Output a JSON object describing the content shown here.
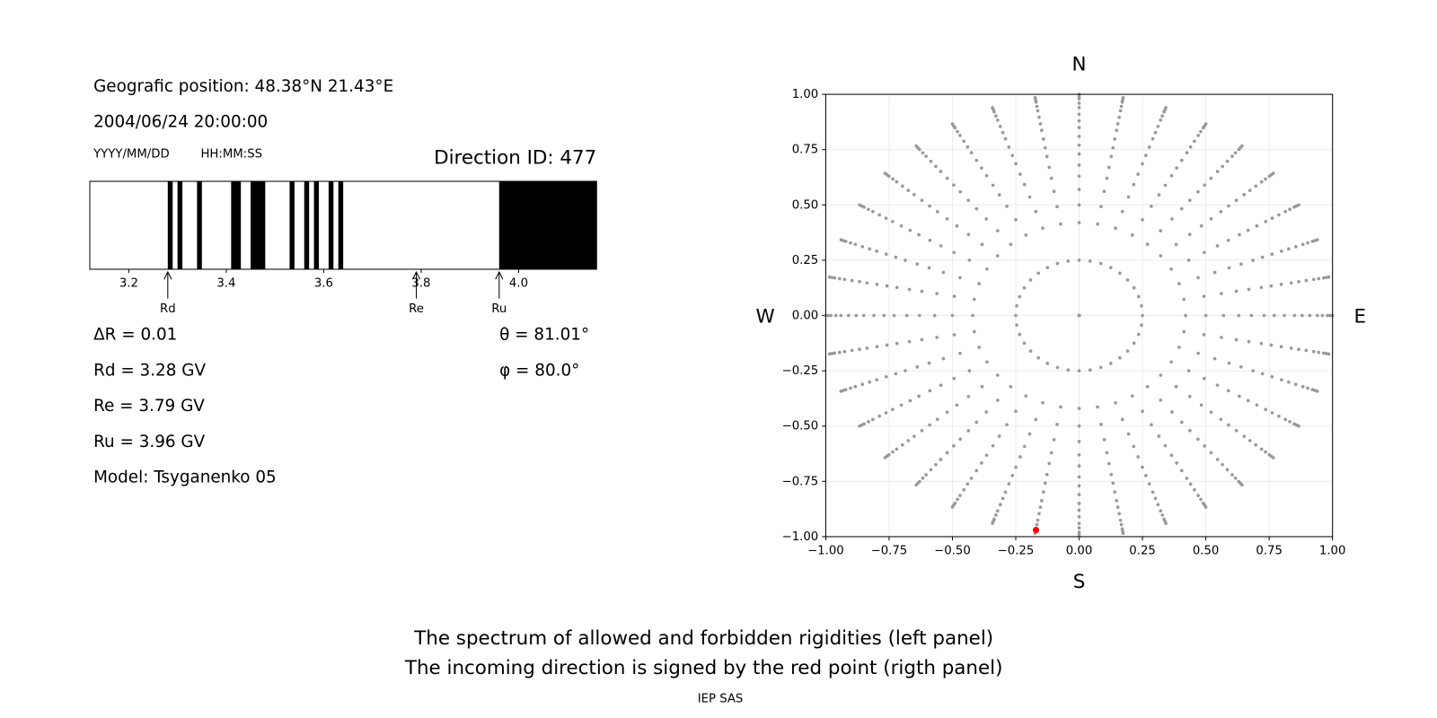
{
  "header": {
    "position": "Geografic position: 48.38°N 21.43°E",
    "datetime": "2004/06/24 20:00:00",
    "date_format": "YYYY/MM/DD",
    "time_format": "HH:MM:SS",
    "direction_id": "Direction ID: 477"
  },
  "parameters": [
    "ΔR = 0.01",
    "Rd = 3.28 GV",
    "Re = 3.79 GV",
    "Ru = 3.96 GV",
    "Model: Tsyganenko 05"
  ],
  "angles": [
    "θ = 81.01°",
    "φ = 80.0°"
  ],
  "caption": [
    "The spectrum of allowed and forbidden rigidities (left panel)",
    "The incoming direction is signed by the red point (rigth panel)"
  ],
  "footer": "IEP SAS",
  "chart_data": [
    {
      "type": "spectrum",
      "color": "#000000",
      "xlim": [
        3.12,
        4.16
      ],
      "xticks": [
        3.2,
        3.4,
        3.6,
        3.8,
        {
          "value": 4,
          "label": "4.0"
        }
      ],
      "forbidden": [
        [
          3.28,
          3.29
        ],
        [
          3.3,
          3.31
        ],
        [
          3.34,
          3.35
        ],
        [
          3.41,
          3.43
        ],
        [
          3.45,
          3.48
        ],
        [
          3.53,
          3.54
        ],
        [
          3.56,
          3.57
        ],
        [
          3.58,
          3.59
        ],
        [
          3.61,
          3.62
        ],
        [
          3.63,
          3.64
        ],
        [
          3.96,
          4.16
        ]
      ],
      "markers": [
        {
          "label": "Rd",
          "value": 3.28
        },
        {
          "label": "Re",
          "value": 3.79
        },
        {
          "label": "Ru",
          "value": 3.96
        }
      ]
    },
    {
      "type": "scatter",
      "point_color": "#999999",
      "grid": true,
      "xlim": [
        -1,
        1
      ],
      "ylim": [
        -1,
        1
      ],
      "xticks": [
        {
          "value": -1,
          "label": "−1.00"
        },
        {
          "value": -0.75,
          "label": "−0.75"
        },
        {
          "value": -0.5,
          "label": "−0.50"
        },
        {
          "value": -0.25,
          "label": "−0.25"
        },
        {
          "value": 0,
          "label": "0.00"
        },
        {
          "value": 0.25,
          "label": "0.25"
        },
        {
          "value": 0.5,
          "label": "0.50"
        },
        {
          "value": 0.75,
          "label": "0.75"
        },
        {
          "value": 1,
          "label": "1.00"
        }
      ],
      "yticks": [
        {
          "value": -1,
          "label": "−1.00"
        },
        {
          "value": -0.75,
          "label": "−0.75"
        },
        {
          "value": -0.5,
          "label": "−0.50"
        },
        {
          "value": -0.25,
          "label": "−0.25"
        },
        {
          "value": 0,
          "label": "0.00"
        },
        {
          "value": 0.25,
          "label": "0.25"
        },
        {
          "value": 0.5,
          "label": "0.50"
        },
        {
          "value": 0.75,
          "label": "0.75"
        },
        {
          "value": 1,
          "label": "1.00"
        }
      ],
      "ring_radii": [
        0,
        0.25,
        0.42,
        0.5,
        0.57,
        0.63,
        0.68,
        0.73,
        0.77,
        0.81,
        0.85,
        0.88,
        0.91,
        0.94,
        0.96,
        0.98,
        0.99,
        1.0
      ],
      "ray_angles": [
        0,
        10,
        20,
        30,
        40,
        50,
        60,
        70,
        80,
        90,
        100,
        110,
        120,
        130,
        140,
        150,
        160,
        170,
        180,
        190,
        200,
        210,
        220,
        230,
        240,
        250,
        260,
        270,
        280,
        290,
        300,
        310,
        320,
        330,
        340,
        350
      ],
      "highlight": {
        "x": -0.17,
        "y": -0.97,
        "color": "#ff0000"
      },
      "compass": {
        "N": "N",
        "E": "E",
        "S": "S",
        "W": "W"
      }
    }
  ]
}
